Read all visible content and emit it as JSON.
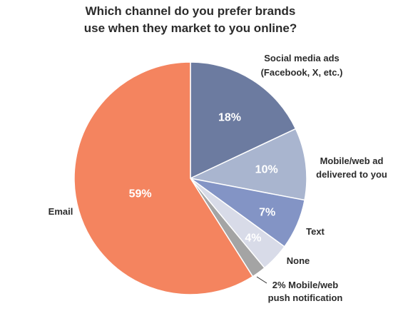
{
  "chart_data": {
    "type": "pie",
    "title": [
      "Which channel do you prefer brands",
      "use when they market to you online?"
    ],
    "slices": [
      {
        "name": "Social media ads (Facebook, X, etc.)",
        "label_lines": [
          "Social media ads",
          "(Facebook, X, etc.)"
        ],
        "value": 18,
        "value_label": "18%",
        "color": "#6c7ba0"
      },
      {
        "name": "Mobile/web ad delivered to you",
        "label_lines": [
          "Mobile/web ad",
          "delivered to you"
        ],
        "value": 10,
        "value_label": "10%",
        "color": "#a9b5cf"
      },
      {
        "name": "Text",
        "label_lines": [
          "Text"
        ],
        "value": 7,
        "value_label": "7%",
        "color": "#8394c5"
      },
      {
        "name": "None",
        "label_lines": [
          "None"
        ],
        "value": 4,
        "value_label": "4%",
        "color": "#d8dbe8"
      },
      {
        "name": "Mobile/web push notification",
        "label_lines": [
          "2% Mobile/web",
          "push notification"
        ],
        "value": 2,
        "value_label": "",
        "color": "#a4a4a4"
      },
      {
        "name": "Email",
        "label_lines": [
          "Email"
        ],
        "value": 59,
        "value_label": "59%",
        "color": "#f4845f"
      }
    ],
    "start_angle": "12 o'clock",
    "direction": "clockwise"
  }
}
